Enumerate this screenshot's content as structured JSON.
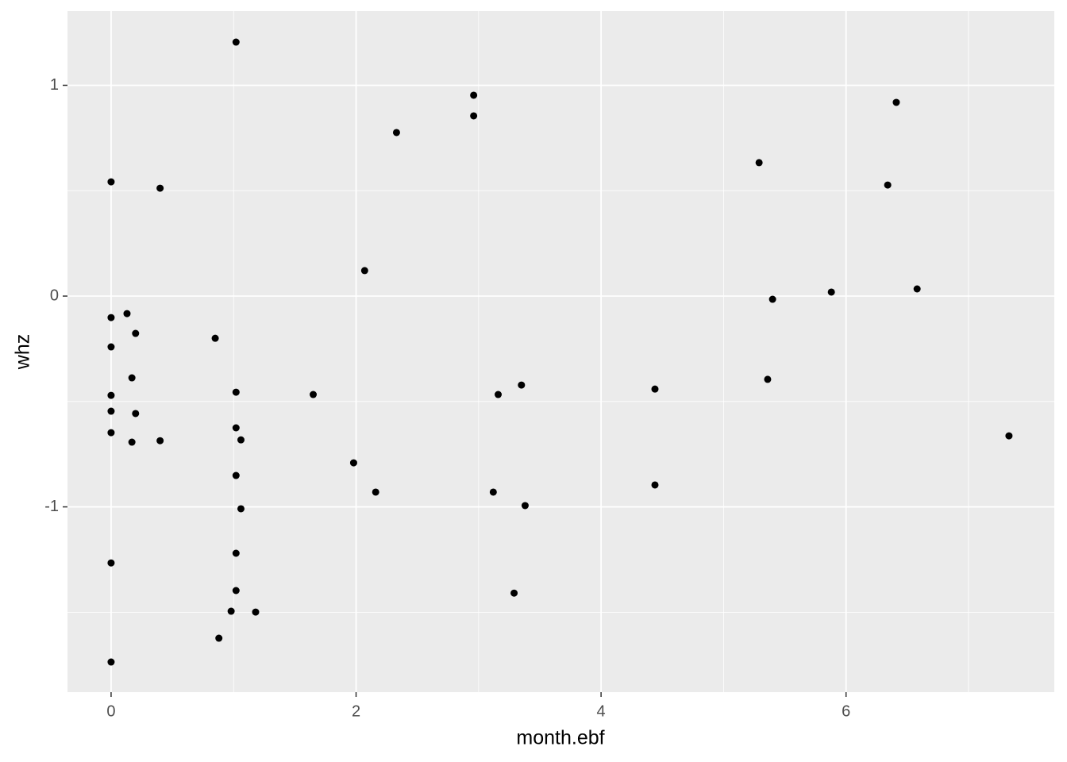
{
  "chart_data": {
    "type": "scatter",
    "x_label": "month.ebf",
    "y_label": "whz",
    "color": "#000000",
    "x": [
      1.02,
      2.96,
      2.96,
      2.33,
      6.41,
      5.29,
      6.34,
      0,
      0.4,
      2.07,
      5.88,
      6.58,
      5.4,
      0,
      0.13,
      0.2,
      0.85,
      0,
      0.17,
      5.36,
      0,
      1.02,
      1.65,
      3.16,
      3.35,
      4.44,
      0,
      0.2,
      0,
      0.17,
      0.4,
      1.02,
      1.06,
      7.33,
      1.98,
      1.02,
      2.16,
      3.12,
      4.44,
      1.06,
      3.38,
      1.02,
      0,
      1.02,
      3.29,
      0.98,
      1.18,
      0.88,
      0
    ],
    "values": [
      1.205,
      0.953,
      0.855,
      0.776,
      0.919,
      0.633,
      0.527,
      0.542,
      0.512,
      0.121,
      0.019,
      0.034,
      -0.015,
      -0.102,
      -0.083,
      -0.177,
      -0.2,
      -0.241,
      -0.388,
      -0.395,
      -0.471,
      -0.456,
      -0.467,
      -0.467,
      -0.422,
      -0.441,
      -0.546,
      -0.557,
      -0.648,
      -0.693,
      -0.686,
      -0.625,
      -0.682,
      -0.663,
      -0.791,
      -0.851,
      -0.93,
      -0.93,
      -0.896,
      -1.009,
      -0.994,
      -1.22,
      -1.266,
      -1.397,
      -1.409,
      -1.495,
      -1.499,
      -1.623,
      -1.736
    ],
    "xlim": [
      -0.356,
      7.7
    ],
    "ylim": [
      -1.879,
      1.352
    ],
    "xticks": [
      0,
      2,
      4,
      6
    ],
    "yticks": [
      -1,
      0,
      1
    ],
    "xminor": [
      1,
      3,
      5,
      7
    ],
    "yminor": [
      -1.5,
      -0.5,
      0.5
    ],
    "grid": true
  }
}
